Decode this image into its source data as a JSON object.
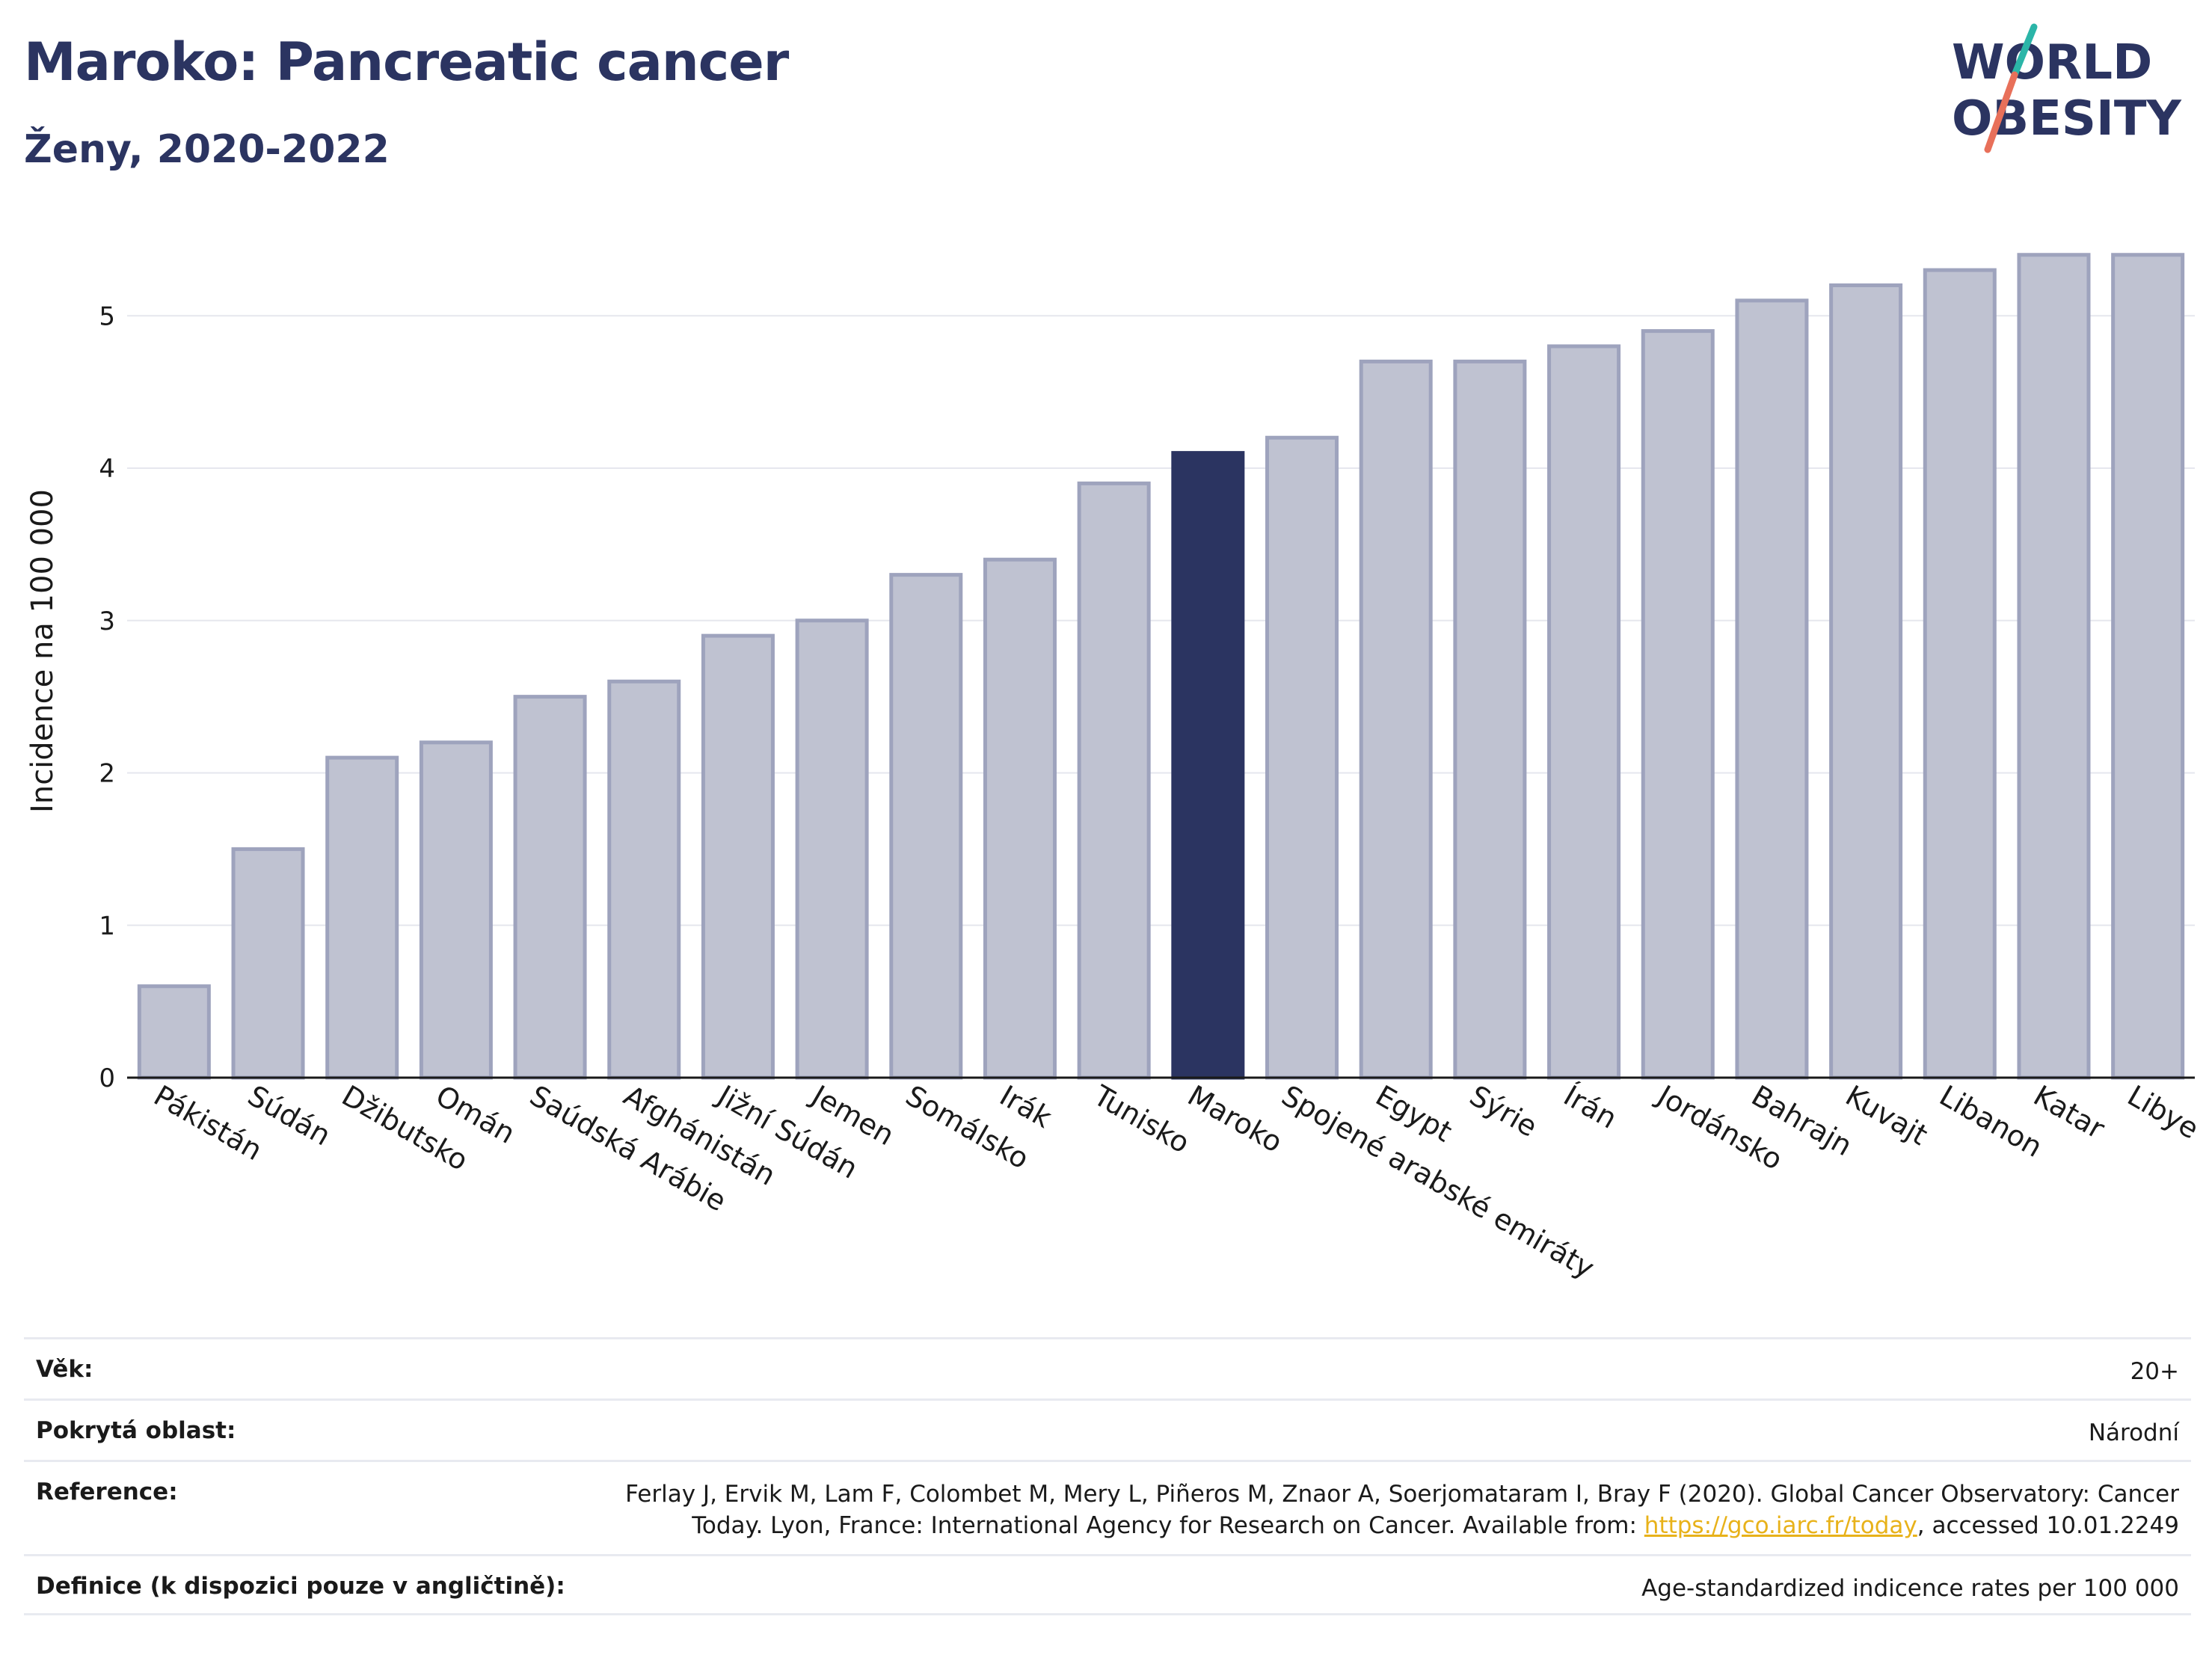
{
  "header": {
    "title": "Maroko: Pancreatic cancer",
    "subtitle": "Ženy, 2020-2022"
  },
  "logo": {
    "line1": "WORLD",
    "line2": "OBESITY",
    "colors": {
      "text": "#2b3461",
      "slash_teal": "#2bb5a8",
      "slash_coral": "#e8705a"
    }
  },
  "chart_data": {
    "type": "bar",
    "ylabel": "Incidence na 100 000",
    "ylim": [
      0,
      5.6
    ],
    "yticks": [
      0,
      1,
      2,
      3,
      4,
      5
    ],
    "grid": true,
    "highlight": "Maroko",
    "colors": {
      "bar": "#bfc2d1",
      "bar_edge": "#9ea3bd",
      "highlight": "#2b3461"
    },
    "categories": [
      "Pákistán",
      "Súdán",
      "Džibutsko",
      "Omán",
      "Saúdská Arábie",
      "Afghánistán",
      "Jižní Súdán",
      "Jemen",
      "Somálsko",
      "Irák",
      "Tunisko",
      "Maroko",
      "Spojené arabské emiráty",
      "Egypt",
      "Sýrie",
      "Írán",
      "Jordánsko",
      "Bahrajn",
      "Kuvajt",
      "Libanon",
      "Katar",
      "Libye"
    ],
    "values": [
      0.6,
      1.5,
      2.1,
      2.2,
      2.5,
      2.6,
      2.9,
      3.0,
      3.3,
      3.4,
      3.9,
      4.1,
      4.2,
      4.7,
      4.7,
      4.8,
      4.9,
      5.1,
      5.2,
      5.3,
      5.4,
      5.4
    ]
  },
  "info": {
    "age": {
      "label": "Věk:",
      "value": "20+"
    },
    "area": {
      "label": "Pokrytá oblast:",
      "value": "Národní"
    },
    "reference": {
      "label": "Reference:",
      "line1": "Ferlay J, Ervik M, Lam F, Colombet M, Mery L, Piñeros M, Znaor A, Soerjomataram I, Bray F (2020). Global Cancer Observatory: Cancer",
      "line2_pre": "Today. Lyon, France: International Agency for Research on Cancer. Available from: ",
      "link": "https://gco.iarc.fr/today",
      "line2_post": ", accessed 10.01.2249"
    },
    "definition": {
      "label": "Definice (k dispozici pouze v angličtině):",
      "value": "Age-standardized indicence rates per 100 000"
    }
  }
}
